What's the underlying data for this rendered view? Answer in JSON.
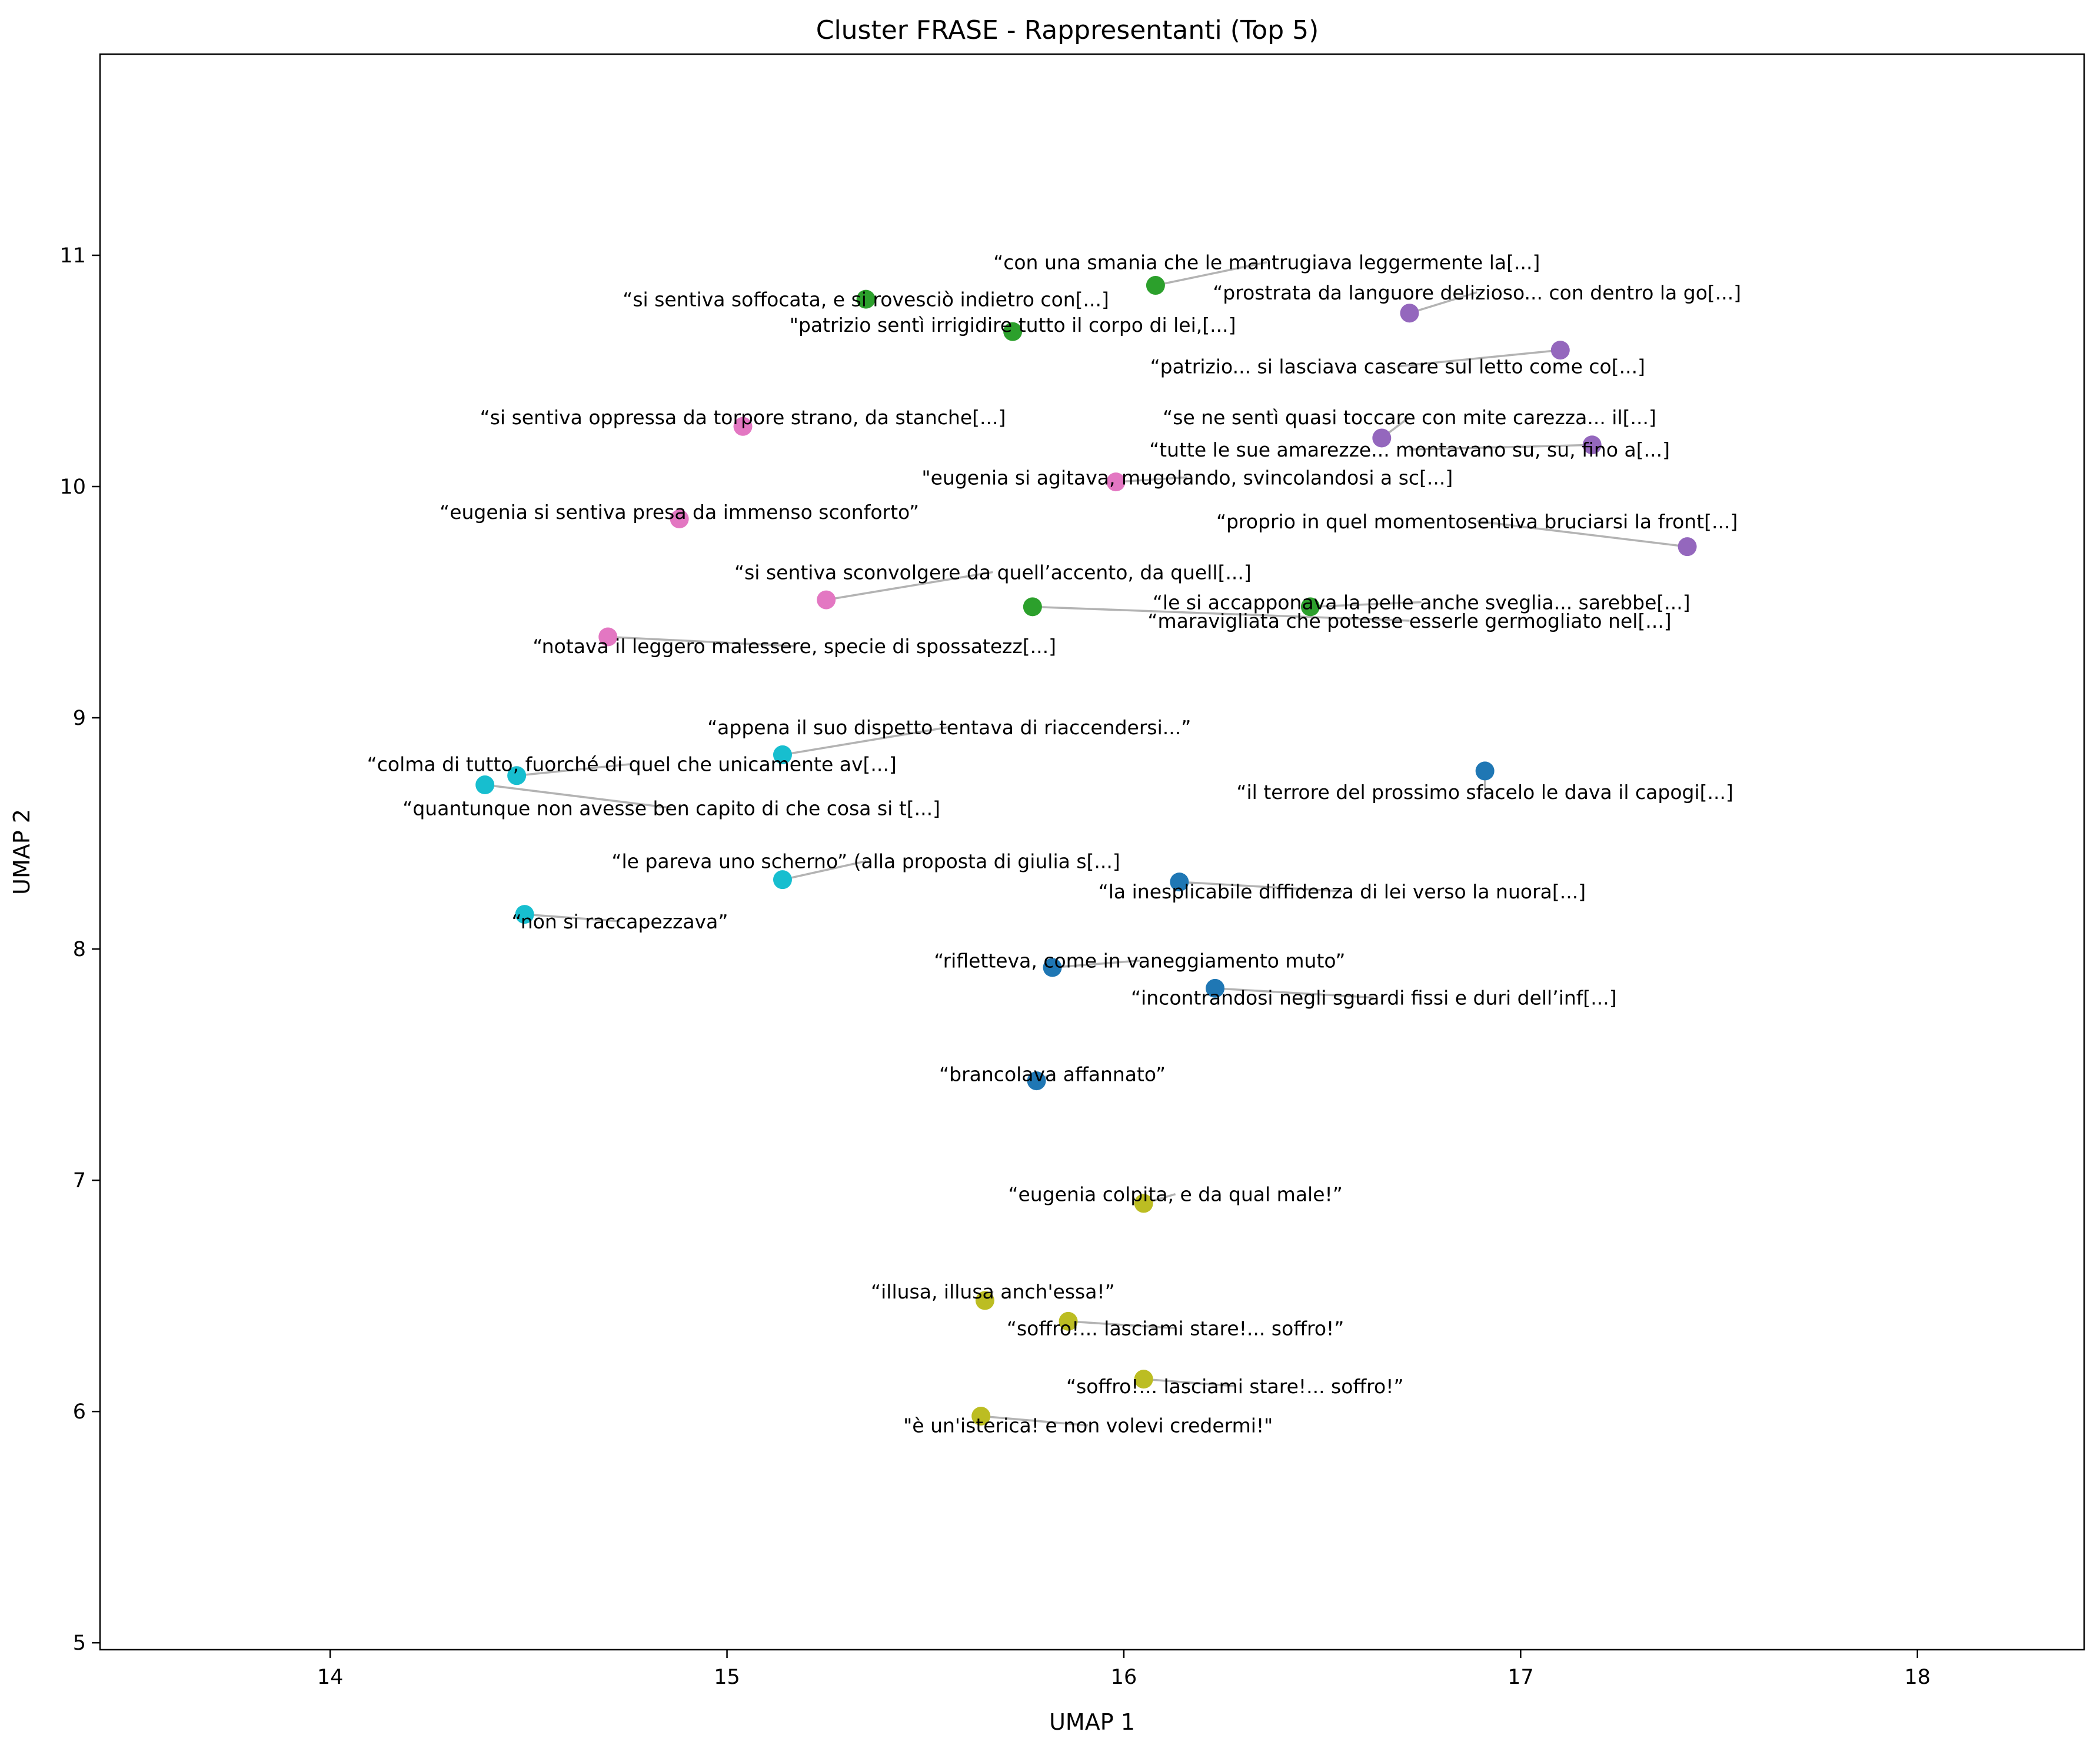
{
  "chart_data": {
    "type": "scatter",
    "title": "Cluster FRASE - Rappresentanti (Top 5)",
    "xlabel": "UMAP 1",
    "ylabel": "UMAP 2",
    "xlim": [
      13.42,
      18.42
    ],
    "ylim": [
      4.97,
      11.87
    ],
    "xticks": [
      14,
      15,
      16,
      17,
      18
    ],
    "yticks": [
      5,
      6,
      7,
      8,
      9,
      10,
      11
    ],
    "grid": false,
    "legend": "none",
    "colors": {
      "blue": "#1f77b4",
      "green": "#2ca02c",
      "purple": "#9467bd",
      "pink": "#e377c2",
      "olive": "#bcbd22",
      "cyan": "#17becf",
      "leader": "#b3b3b3"
    },
    "points": [
      {
        "x": 16.08,
        "y": 10.87,
        "color": "green",
        "lx": 16.36,
        "ly": 10.97,
        "ha": "middle",
        "label": "“con una smania che le mantrugiava leggermente la[...]"
      },
      {
        "x": 15.35,
        "y": 10.81,
        "color": "green",
        "lx": 15.35,
        "ly": 10.81,
        "ha": "middle",
        "label": "“si sentiva soffocata, e si rovesciò indietro con[...]"
      },
      {
        "x": 16.72,
        "y": 10.75,
        "color": "purple",
        "lx": 16.89,
        "ly": 10.84,
        "ha": "middle",
        "label": "“prostrata da languore delizioso... con dentro la go[...]"
      },
      {
        "x": 15.72,
        "y": 10.67,
        "color": "green",
        "lx": 15.72,
        "ly": 10.7,
        "ha": "middle",
        "label": "\"patrizio sentì irrigidire tutto il corpo di lei,[...]"
      },
      {
        "x": 17.1,
        "y": 10.59,
        "color": "purple",
        "lx": 16.69,
        "ly": 10.52,
        "ha": "middle",
        "label": "“patrizio... si lasciava cascare sul letto come co[...]"
      },
      {
        "x": 15.04,
        "y": 10.26,
        "color": "pink",
        "lx": 15.04,
        "ly": 10.3,
        "ha": "middle",
        "label": "“si sentiva oppressa da torpore strano, da stanche[...]"
      },
      {
        "x": 16.65,
        "y": 10.21,
        "color": "purple",
        "lx": 16.72,
        "ly": 10.3,
        "ha": "middle",
        "label": "“se ne sentì quasi toccare con mite carezza... il[...]"
      },
      {
        "x": 17.18,
        "y": 10.18,
        "color": "purple",
        "lx": 16.72,
        "ly": 10.16,
        "ha": "middle",
        "label": "“tutte le sue amarezze... montavano su, su, fino a[...]"
      },
      {
        "x": 15.98,
        "y": 10.02,
        "color": "pink",
        "lx": 16.16,
        "ly": 10.04,
        "ha": "middle",
        "label": "\"eugenia si agitava, mugolando, svincolandosi a sc[...]"
      },
      {
        "x": 14.88,
        "y": 9.86,
        "color": "pink",
        "lx": 14.88,
        "ly": 9.89,
        "ha": "middle",
        "label": "“eugenia si sentiva presa da immenso sconforto”"
      },
      {
        "x": 17.42,
        "y": 9.74,
        "color": "purple",
        "lx": 16.89,
        "ly": 9.85,
        "ha": "middle",
        "label": "“proprio in quel momentosentiva bruciarsi la front[...]"
      },
      {
        "x": 15.25,
        "y": 9.51,
        "color": "pink",
        "lx": 15.67,
        "ly": 9.63,
        "ha": "middle",
        "label": "“si sentiva sconvolgere da quell’accento, da quell[...]"
      },
      {
        "x": 15.77,
        "y": 9.48,
        "color": "green",
        "lx": 16.72,
        "ly": 9.42,
        "ha": "middle",
        "label": "“maravigliata che potesse esserle germogliato nel[...]"
      },
      {
        "x": 16.47,
        "y": 9.48,
        "color": "green",
        "lx": 16.75,
        "ly": 9.5,
        "ha": "middle",
        "label": "“le si accapponava la pelle anche sveglia... sarebbe[...]"
      },
      {
        "x": 14.7,
        "y": 9.35,
        "color": "pink",
        "lx": 15.17,
        "ly": 9.31,
        "ha": "middle",
        "label": "“notava il leggero malessere, specie di spossatezz[...]"
      },
      {
        "x": 15.14,
        "y": 8.84,
        "color": "cyan",
        "lx": 15.56,
        "ly": 8.96,
        "ha": "middle",
        "label": "“appena il suo dispetto tentava di riaccendersi...”"
      },
      {
        "x": 14.47,
        "y": 8.75,
        "color": "cyan",
        "lx": 14.76,
        "ly": 8.8,
        "ha": "middle",
        "label": "“colma di tutto, fuorché di quel che unicamente av[...]"
      },
      {
        "x": 16.91,
        "y": 8.77,
        "color": "blue",
        "lx": 16.91,
        "ly": 8.68,
        "ha": "middle",
        "label": "“il terrore del prossimo sfacelo le dava il capogi[...]"
      },
      {
        "x": 14.39,
        "y": 8.71,
        "color": "cyan",
        "lx": 14.86,
        "ly": 8.61,
        "ha": "middle",
        "label": "“quantunque non avesse ben capito di che cosa si t[...]"
      },
      {
        "x": 15.14,
        "y": 8.3,
        "color": "cyan",
        "lx": 15.35,
        "ly": 8.38,
        "ha": "middle",
        "label": "“le pareva uno scherno” (alla proposta di giulia s[...]"
      },
      {
        "x": 16.14,
        "y": 8.29,
        "color": "blue",
        "lx": 16.55,
        "ly": 8.25,
        "ha": "middle",
        "label": "“la inesplicabile diffidenza di lei verso la nuora[...]"
      },
      {
        "x": 14.49,
        "y": 8.15,
        "color": "cyan",
        "lx": 14.73,
        "ly": 8.12,
        "ha": "middle",
        "label": "“non si raccapezzava”"
      },
      {
        "x": 15.82,
        "y": 7.92,
        "color": "blue",
        "lx": 16.04,
        "ly": 7.95,
        "ha": "middle",
        "label": "“rifletteva, come in vaneggiamento muto”"
      },
      {
        "x": 16.23,
        "y": 7.83,
        "color": "blue",
        "lx": 16.63,
        "ly": 7.79,
        "ha": "middle",
        "label": "“incontrandosi negli sguardi fissi e duri dell’inf[...]"
      },
      {
        "x": 15.78,
        "y": 7.43,
        "color": "blue",
        "lx": 15.82,
        "ly": 7.46,
        "ha": "middle",
        "label": "“brancolava affannato”"
      },
      {
        "x": 16.05,
        "y": 6.9,
        "color": "olive",
        "lx": 16.13,
        "ly": 6.94,
        "ha": "middle",
        "label": "“eugenia colpita, e da qual male!”"
      },
      {
        "x": 15.65,
        "y": 6.48,
        "color": "olive",
        "lx": 15.67,
        "ly": 6.52,
        "ha": "middle",
        "label": "“illusa, illusa anch'essa!”"
      },
      {
        "x": 15.86,
        "y": 6.39,
        "color": "olive",
        "lx": 16.13,
        "ly": 6.36,
        "ha": "middle",
        "label": "“soffro!... lasciami stare!... soffro!”"
      },
      {
        "x": 16.05,
        "y": 6.14,
        "color": "olive",
        "lx": 16.28,
        "ly": 6.11,
        "ha": "middle",
        "label": "“soffro!... lasciami stare!... soffro!”"
      },
      {
        "x": 15.64,
        "y": 5.98,
        "color": "olive",
        "lx": 15.91,
        "ly": 5.94,
        "ha": "middle",
        "label": "\"è un'isterica! e non volevi credermi!\""
      }
    ]
  }
}
